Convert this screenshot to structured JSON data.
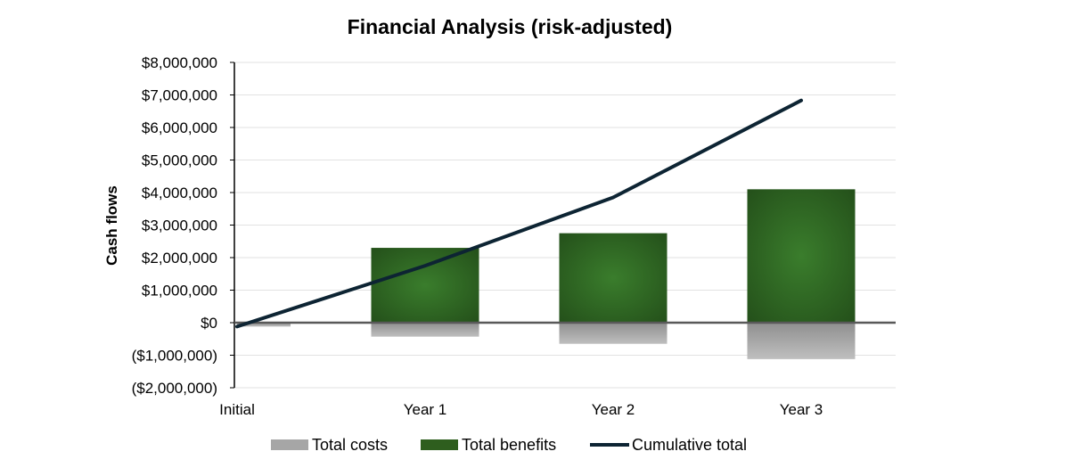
{
  "chart_data": {
    "type": "bar",
    "title": "Financial Analysis (risk-adjusted)",
    "xlabel": "",
    "ylabel": "Cash flows",
    "categories": [
      "Initial",
      "Year 1",
      "Year 2",
      "Year 3"
    ],
    "ylim": [
      -2000000,
      8000000
    ],
    "yticks": [
      8000000,
      7000000,
      6000000,
      5000000,
      4000000,
      3000000,
      2000000,
      1000000,
      0,
      -1000000,
      -2000000
    ],
    "ytick_labels": [
      "$8,000,000",
      "$7,000,000",
      "$6,000,000",
      "$5,000,000",
      "$4,000,000",
      "$3,000,000",
      "$2,000,000",
      "$1,000,000",
      "$0",
      "($1,000,000)",
      "($2,000,000)"
    ],
    "grid": true,
    "legend_position": "bottom",
    "series": [
      {
        "name": "Total costs",
        "kind": "bar",
        "color": "#a6a6a6",
        "values": [
          -120000,
          -430000,
          -650000,
          -1120000
        ]
      },
      {
        "name": "Total benefits",
        "kind": "bar",
        "color": "#2e5e1e",
        "values": [
          0,
          2300000,
          2750000,
          4100000
        ]
      },
      {
        "name": "Cumulative total",
        "kind": "line",
        "color": "#0d2433",
        "values": [
          -120000,
          1750000,
          3850000,
          6830000
        ]
      }
    ]
  }
}
